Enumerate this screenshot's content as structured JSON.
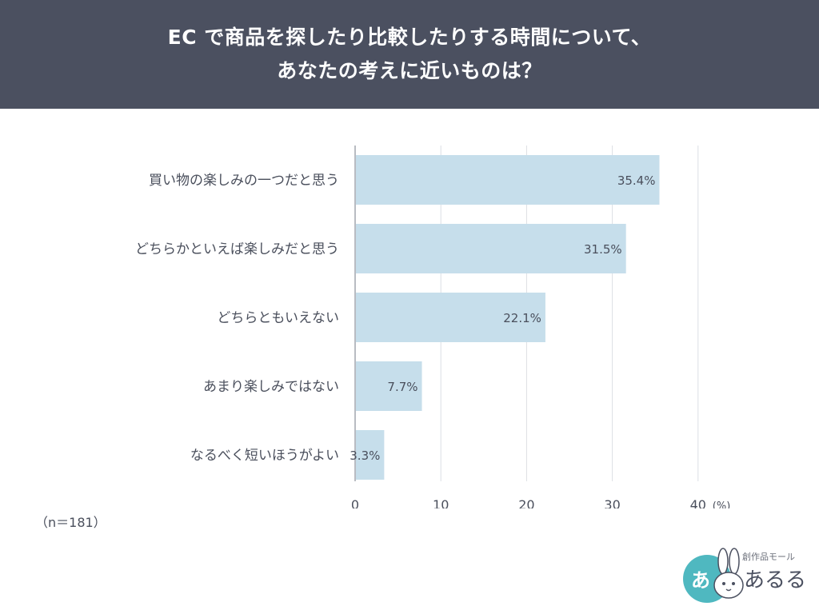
{
  "header": {
    "line1": "EC で商品を探したり比較したりする時間について、",
    "line2": "あなたの考えに近いものは？"
  },
  "chart_data": {
    "type": "bar",
    "orientation": "horizontal",
    "categories": [
      "買い物の楽しみの一つだと思う",
      "どちらかといえば楽しみだと思う",
      "どちらともいえない",
      "あまり楽しみではない",
      "なるべく短いほうがよい"
    ],
    "values": [
      35.4,
      31.5,
      22.1,
      7.7,
      3.3
    ],
    "value_labels": [
      "35.4%",
      "31.5%",
      "22.1%",
      "7.7%",
      "3.3%"
    ],
    "xlim": [
      0,
      40
    ],
    "xticks": [
      "0",
      "10",
      "20",
      "30",
      "40"
    ],
    "unit": "(%)",
    "grid": true,
    "bar_color": "#c6deeb"
  },
  "sample_note": "（n＝181）",
  "logo": {
    "small_text": "創作品モール",
    "big_text": "あるる",
    "badge_text": "あ"
  }
}
